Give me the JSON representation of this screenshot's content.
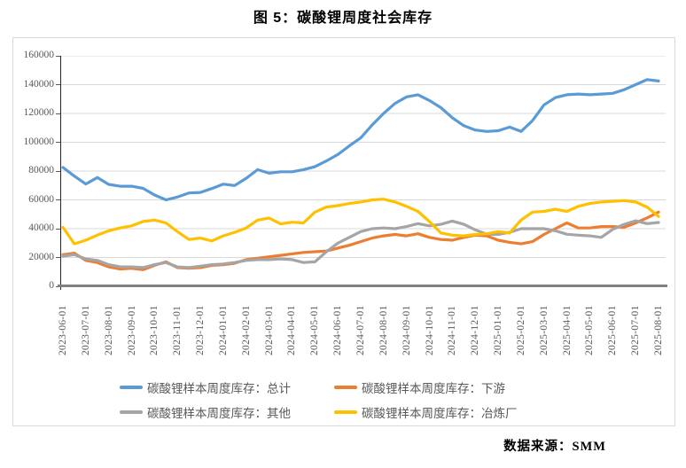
{
  "title": "图 5：碳酸锂周度社会库存",
  "source": "数据来源：SMM",
  "chart_data": {
    "type": "line",
    "title": "图 5：碳酸锂周度社会库存",
    "grid": true,
    "legend_position": "bottom",
    "y_axis": {
      "min": 0,
      "max": 160000,
      "step": 20000,
      "tick_labels": [
        "0",
        "20000",
        "40000",
        "60000",
        "80000",
        "100000",
        "120000",
        "140000",
        "160000"
      ]
    },
    "x_tick_labels": [
      "2023-06-01",
      "2023-07-01",
      "2023-08-01",
      "2023-09-01",
      "2023-10-01",
      "2023-11-01",
      "2023-12-01",
      "2024-01-01",
      "2024-02-01",
      "2024-03-01",
      "2024-04-01",
      "2024-05-01",
      "2024-06-01",
      "2024-07-01",
      "2024-08-01",
      "2024-09-01",
      "2024-10-01",
      "2024-11-01",
      "2024-12-01",
      "2025-01-01",
      "2025-02-01",
      "2025-03-01",
      "2025-04-01",
      "2025-05-01",
      "2025-06-01",
      "2025-07-01",
      "2025-08-01"
    ],
    "points_per_month": 2,
    "series": [
      {
        "name": "碳酸锂样本周度库存：总计",
        "color": "#5B9BD5",
        "values": [
          82500,
          76500,
          71000,
          75500,
          70700,
          69500,
          69500,
          68000,
          63400,
          60000,
          62000,
          64800,
          65200,
          67900,
          70900,
          70000,
          75000,
          81000,
          78500,
          79500,
          79500,
          81000,
          83000,
          87000,
          91500,
          97500,
          103000,
          112000,
          120000,
          127000,
          131500,
          133000,
          129000,
          124000,
          117000,
          111500,
          108500,
          107500,
          108000,
          110500,
          107500,
          115000,
          126000,
          131000,
          133000,
          133500,
          133000,
          133500,
          134000,
          136500,
          140000,
          143500,
          142500
        ]
      },
      {
        "name": "碳酸锂样本周度库存：下游",
        "color": "#ED7D31",
        "values": [
          22000,
          23000,
          18000,
          16500,
          13500,
          12000,
          12500,
          11500,
          14500,
          17000,
          13000,
          12500,
          13000,
          14500,
          15000,
          16000,
          18500,
          19500,
          20500,
          21500,
          22500,
          23500,
          24000,
          24500,
          26500,
          28500,
          31000,
          33500,
          35000,
          36000,
          35000,
          36500,
          34000,
          32500,
          32000,
          34000,
          35500,
          35000,
          32000,
          30500,
          29500,
          31000,
          36000,
          40000,
          44000,
          40500,
          40500,
          41500,
          41500,
          41000,
          44000,
          47500,
          51500
        ]
      },
      {
        "name": "碳酸锂样本周度库存：其他",
        "color": "#A5A5A5",
        "values": [
          21000,
          22000,
          19000,
          18000,
          15000,
          13500,
          13500,
          13000,
          15000,
          16500,
          13500,
          13000,
          14000,
          15000,
          15500,
          16500,
          18000,
          18500,
          18500,
          19000,
          18500,
          16500,
          17000,
          24000,
          30000,
          34000,
          38000,
          40000,
          40500,
          40000,
          41500,
          43500,
          42000,
          43000,
          45300,
          43000,
          39200,
          36100,
          36000,
          37500,
          40000,
          40000,
          40000,
          38500,
          36100,
          35500,
          35000,
          34000,
          39500,
          43000,
          45500,
          43500,
          44300
        ]
      },
      {
        "name": "碳酸锂样本周度库存：冶炼厂",
        "color": "#FFC000",
        "values": [
          41000,
          29500,
          32000,
          35500,
          38500,
          40500,
          42000,
          45000,
          46000,
          44000,
          38000,
          32500,
          33500,
          31500,
          35000,
          37500,
          40500,
          46000,
          47400,
          43300,
          44500,
          44000,
          51500,
          55000,
          56000,
          57500,
          58500,
          60000,
          60500,
          58500,
          55500,
          52000,
          45000,
          37000,
          35500,
          35000,
          36000,
          36500,
          38000,
          37000,
          46000,
          51500,
          52000,
          53500,
          52000,
          55500,
          57500,
          58500,
          59000,
          59500,
          58500,
          55000,
          48500
        ]
      }
    ],
    "style": {
      "gridline_color": "#D9D9D9",
      "axis_color": "#262626",
      "baseline_color": "#808080",
      "tick_label_color": "#595959",
      "line_width": 3.2
    }
  }
}
